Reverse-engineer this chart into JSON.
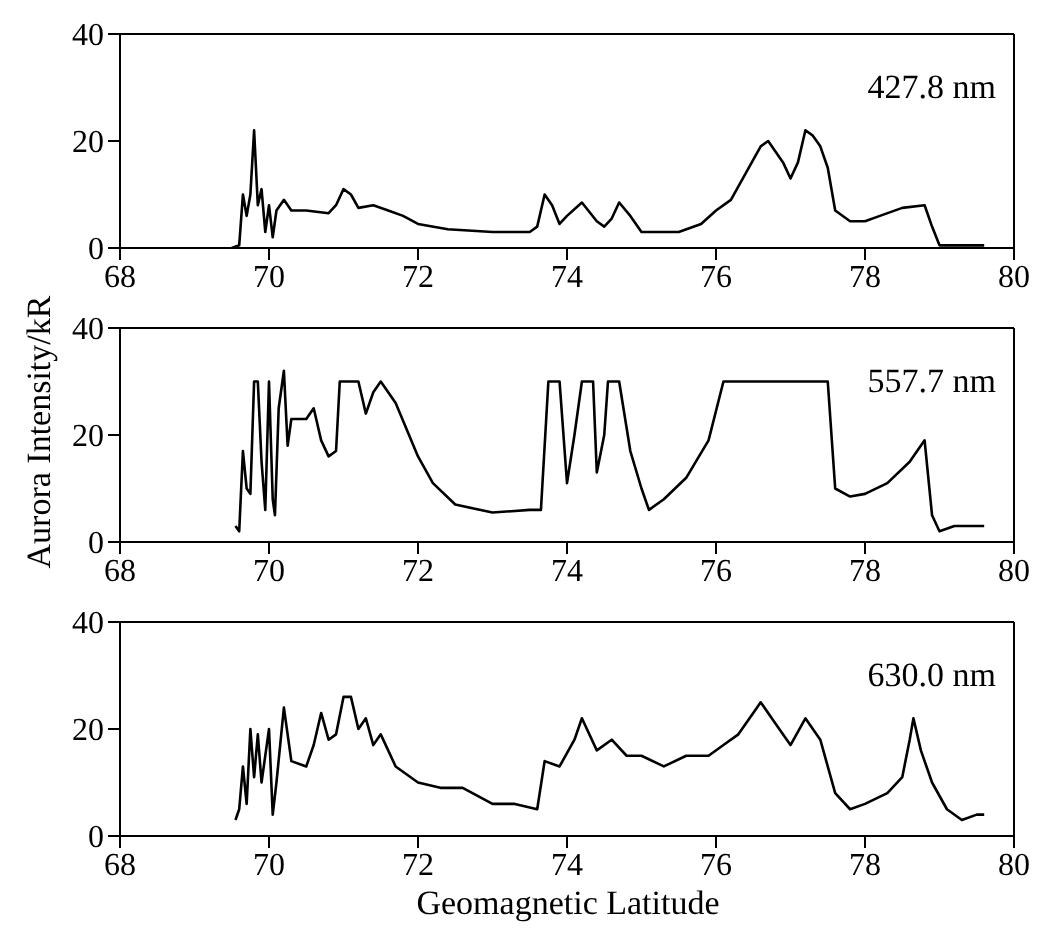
{
  "chart_data": [
    {
      "type": "line",
      "annotations": [
        "427.8 nm"
      ],
      "xlim": [
        68,
        80
      ],
      "xticks": [
        68,
        70,
        72,
        74,
        76,
        78,
        80
      ],
      "ylim": [
        0,
        40
      ],
      "yticks": [
        0,
        20,
        40
      ],
      "marker": "none",
      "line_style": "solid",
      "series": [
        {
          "color": "#000000",
          "x": [
            69.5,
            69.6,
            69.65,
            69.7,
            69.75,
            69.8,
            69.85,
            69.9,
            69.95,
            70.0,
            70.05,
            70.1,
            70.2,
            70.3,
            70.5,
            70.8,
            70.9,
            71.0,
            71.1,
            71.2,
            71.4,
            71.6,
            71.8,
            72.0,
            72.4,
            73.0,
            73.5,
            73.6,
            73.7,
            73.8,
            73.9,
            74.0,
            74.2,
            74.4,
            74.5,
            74.6,
            74.7,
            74.85,
            75.0,
            75.5,
            75.8,
            76.0,
            76.2,
            76.4,
            76.6,
            76.7,
            76.9,
            77.0,
            77.1,
            77.2,
            77.3,
            77.4,
            77.5,
            77.6,
            77.8,
            78.0,
            78.2,
            78.5,
            78.8,
            78.9,
            79.0,
            79.6
          ],
          "values": [
            0,
            0.5,
            10,
            6,
            10,
            22,
            8,
            11,
            3,
            8,
            2,
            7,
            9,
            7,
            7,
            6.5,
            8,
            11,
            10,
            7.5,
            8,
            7,
            6,
            4.5,
            3.5,
            3,
            3,
            4,
            10,
            8,
            4.5,
            6,
            8.5,
            5,
            4,
            5.5,
            8.5,
            6,
            3,
            3,
            4.5,
            7,
            9,
            14,
            19,
            20,
            16,
            13,
            16,
            22,
            21,
            19,
            15,
            7,
            5,
            5,
            6,
            7.5,
            8,
            4,
            0.5,
            0.5
          ]
        }
      ]
    },
    {
      "type": "line",
      "annotations": [
        "557.7 nm"
      ],
      "ylabel": "Aurora Intensity/kR",
      "xlim": [
        68,
        80
      ],
      "xticks": [
        68,
        70,
        72,
        74,
        76,
        78,
        80
      ],
      "ylim": [
        0,
        40
      ],
      "yticks": [
        0,
        20,
        40
      ],
      "marker": "none",
      "line_style": "solid",
      "series": [
        {
          "color": "#000000",
          "x": [
            69.55,
            69.6,
            69.65,
            69.7,
            69.75,
            69.8,
            69.85,
            69.9,
            69.95,
            70.0,
            70.05,
            70.08,
            70.13,
            70.2,
            70.25,
            70.3,
            70.5,
            70.6,
            70.7,
            70.8,
            70.9,
            70.95,
            71.2,
            71.3,
            71.4,
            71.5,
            71.7,
            72.0,
            72.2,
            72.5,
            73.0,
            73.5,
            73.65,
            73.75,
            73.9,
            74.0,
            74.1,
            74.2,
            74.35,
            74.4,
            74.5,
            74.55,
            74.7,
            74.85,
            75.0,
            75.1,
            75.3,
            75.6,
            75.9,
            76.1,
            77.5,
            77.6,
            77.8,
            78.0,
            78.3,
            78.6,
            78.8,
            78.9,
            79.0,
            79.2,
            79.6
          ],
          "values": [
            3,
            2,
            17,
            10,
            9,
            30,
            30,
            15,
            6,
            30,
            8,
            5,
            25,
            32,
            18,
            23,
            23,
            25,
            19,
            16,
            17,
            30,
            30,
            24,
            28,
            30,
            26,
            16,
            11,
            7,
            5.5,
            6,
            6,
            30,
            30,
            11,
            20,
            30,
            30,
            13,
            20,
            30,
            30,
            17,
            10,
            6,
            8,
            12,
            19,
            30,
            30,
            10,
            8.5,
            9,
            11,
            15,
            19,
            5,
            2,
            3,
            3
          ]
        }
      ]
    },
    {
      "type": "line",
      "annotations": [
        "630.0 nm"
      ],
      "xlabel": "Geomagnetic Latitude",
      "xlim": [
        68,
        80
      ],
      "xticks": [
        68,
        70,
        72,
        74,
        76,
        78,
        80
      ],
      "ylim": [
        0,
        40
      ],
      "yticks": [
        0,
        20,
        40
      ],
      "marker": "none",
      "line_style": "solid",
      "series": [
        {
          "color": "#000000",
          "x": [
            69.55,
            69.6,
            69.65,
            69.7,
            69.75,
            69.8,
            69.85,
            69.9,
            70.0,
            70.05,
            70.1,
            70.2,
            70.3,
            70.5,
            70.6,
            70.7,
            70.8,
            70.9,
            71.0,
            71.1,
            71.2,
            71.3,
            71.4,
            71.5,
            71.7,
            72.0,
            72.3,
            72.6,
            73.0,
            73.3,
            73.6,
            73.7,
            73.9,
            74.1,
            74.2,
            74.4,
            74.6,
            74.8,
            75.0,
            75.3,
            75.6,
            75.9,
            76.1,
            76.3,
            76.5,
            76.6,
            76.8,
            77.0,
            77.2,
            77.4,
            77.6,
            77.8,
            78.0,
            78.3,
            78.5,
            78.6,
            78.65,
            78.75,
            78.9,
            79.1,
            79.3,
            79.5,
            79.6
          ],
          "values": [
            3,
            5,
            13,
            6,
            20,
            11,
            19,
            10,
            20,
            4,
            10,
            24,
            14,
            13,
            17,
            23,
            18,
            19,
            26,
            26,
            20,
            22,
            17,
            19,
            13,
            10,
            9,
            9,
            6,
            6,
            5,
            14,
            13,
            18,
            22,
            16,
            18,
            15,
            15,
            13,
            15,
            15,
            17,
            19,
            23,
            25,
            21,
            17,
            22,
            18,
            8,
            5,
            6,
            8,
            11,
            18,
            22,
            16,
            10,
            5,
            3,
            4,
            4
          ]
        }
      ]
    }
  ]
}
